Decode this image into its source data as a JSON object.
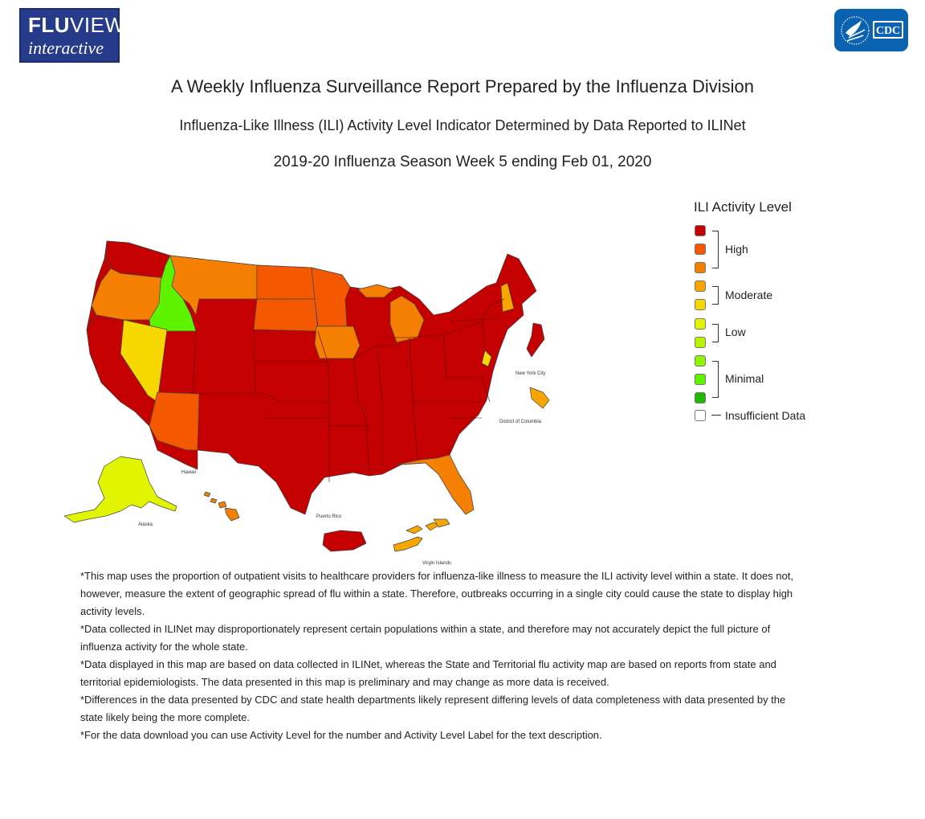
{
  "header": {
    "logo_fluview_line1": "FLU",
    "logo_fluview_line1b": "VIEW",
    "logo_fluview_line2": "interactive",
    "logo_cdc": "CDC"
  },
  "titles": {
    "main": "A Weekly Influenza Surveillance Report Prepared by the Influenza Division",
    "subtitle": "Influenza-Like Illness (ILI) Activity Level Indicator Determined by Data Reported to ILINet",
    "season": "2019-20 Influenza Season Week 5 ending Feb 01, 2020"
  },
  "map_labels": {
    "hawaii": "Hawaii",
    "alaska": "Alaska",
    "puerto_rico": "Puerto Rico",
    "virgin_islands": "Virgin Islands",
    "new_york_city": "New York City",
    "district_of_columbia": "District of Columbia"
  },
  "legend": {
    "title": "ILI Activity Level",
    "swatches": [
      "#c40000",
      "#f45800",
      "#f57f00",
      "#f7a600",
      "#f7d700",
      "#e2f500",
      "#b8f500",
      "#90f500",
      "#5ef400",
      "#21b800",
      "#ffffff"
    ],
    "groups": {
      "high": "High",
      "moderate": "Moderate",
      "low": "Low",
      "minimal": "Minimal",
      "insufficient": "Insufficient Data"
    }
  },
  "notes": [
    "*This map uses the proportion of outpatient visits to healthcare providers for influenza-like illness to measure the ILI activity level within a state. It does not, however, measure the extent of geographic spread of flu within a state. Therefore, outbreaks occurring in a single city could cause the state to display high activity levels.",
    "*Data collected in ILINet may disproportionately represent certain populations within a state, and therefore may not accurately depict the full picture of influenza activity for the whole state.",
    "*Data displayed in this map are based on data collected in ILINet, whereas the State and Territorial flu activity map are based on reports from state and territorial epidemiologists. The data presented in this map is preliminary and may change as more data is received.",
    "*Differences in the data presented by CDC and state health departments likely represent differing levels of data completeness with data presented by the state likely being the more complete.",
    "*For the data download you can use Activity Level for the number and Activity Level Label for the text description."
  ]
}
